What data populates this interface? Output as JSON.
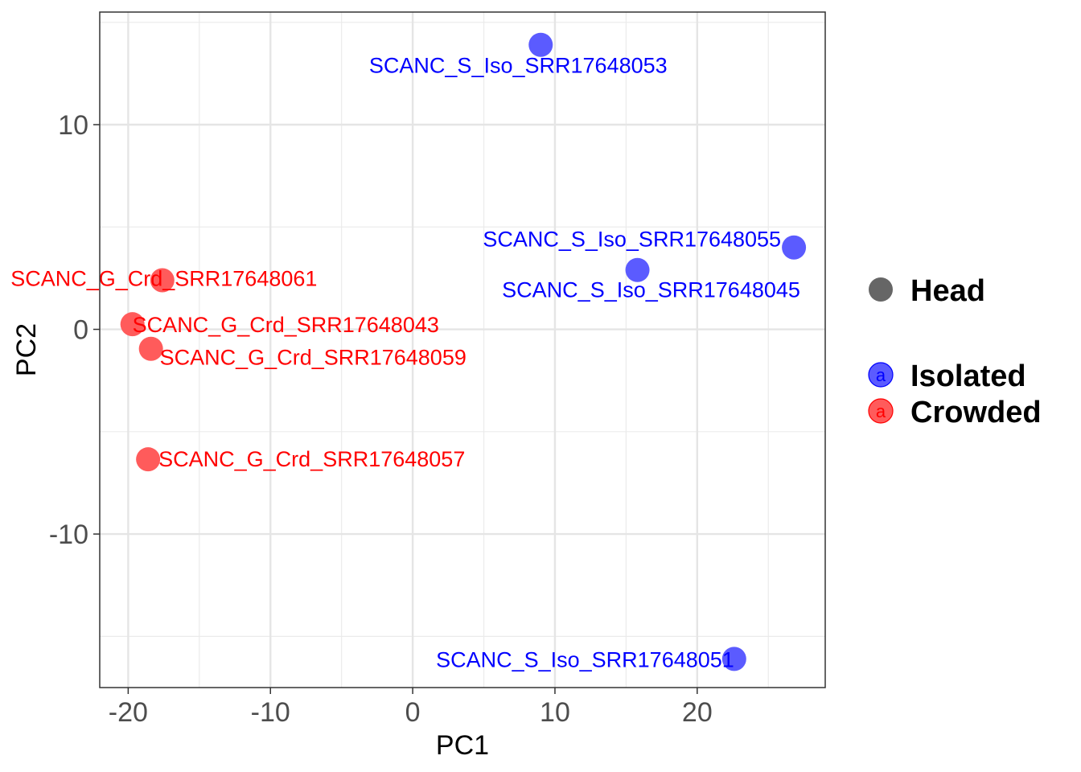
{
  "chart_data": {
    "type": "scatter",
    "title": "",
    "xlabel": "PC1",
    "ylabel": "PC2",
    "xlim": [
      -22,
      29
    ],
    "ylim": [
      -17.5,
      15.5
    ],
    "x_ticks": [
      -20,
      -10,
      0,
      10,
      20
    ],
    "y_ticks": [
      -10,
      0,
      10
    ],
    "x_tick_labels": [
      "-20",
      "-10",
      "0",
      "10",
      "20"
    ],
    "y_tick_labels": [
      "-10",
      "0",
      "10"
    ],
    "grid": true,
    "colors": {
      "Isolated": "#5B5BFF",
      "Crowded": "#FF5B5B",
      "Isolated_text": "#0000FF",
      "Crowded_text": "#FF0000",
      "shape": "#666666"
    },
    "legend": {
      "shape_title": "Head",
      "groups": [
        {
          "name": "Isolated",
          "key_glyph": "a"
        },
        {
          "name": "Crowded",
          "key_glyph": "a"
        }
      ]
    },
    "points": [
      {
        "label": "SCANC_S_Iso_SRR17648053",
        "group": "Isolated",
        "x": 9.0,
        "y": 13.9
      },
      {
        "label": "SCANC_S_Iso_SRR17648055",
        "group": "Isolated",
        "x": 26.8,
        "y": 4.0
      },
      {
        "label": "SCANC_S_Iso_SRR17648045",
        "group": "Isolated",
        "x": 15.8,
        "y": 2.9
      },
      {
        "label": "SCANC_S_Iso_SRR17648051",
        "group": "Isolated",
        "x": 22.6,
        "y": -16.1
      },
      {
        "label": "SCANC_G_Crd_SRR17648061",
        "group": "Crowded",
        "x": -17.6,
        "y": 2.4
      },
      {
        "label": "SCANC_G_Crd_SRR17648043",
        "group": "Crowded",
        "x": -19.7,
        "y": 0.25
      },
      {
        "label": "SCANC_G_Crd_SRR17648059",
        "group": "Crowded",
        "x": -18.4,
        "y": -0.95
      },
      {
        "label": "SCANC_G_Crd_SRR17648057",
        "group": "Crowded",
        "x": -18.6,
        "y": -6.35
      }
    ]
  }
}
